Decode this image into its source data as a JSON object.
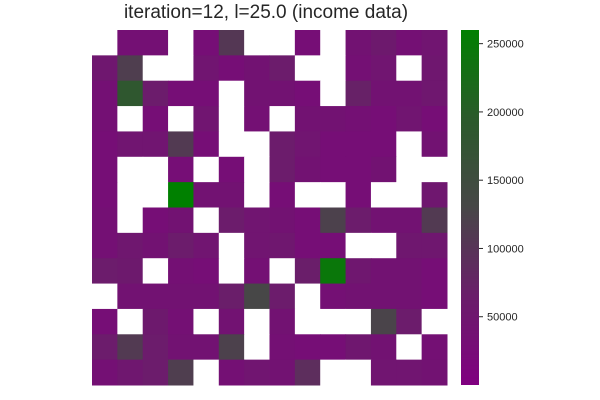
{
  "chart_data": {
    "type": "heatmap",
    "title": "iteration=12, l=25.0 (income data)",
    "xlabel": "",
    "ylabel": "",
    "grid": false,
    "colorbar": {
      "position": "right",
      "min": 0,
      "max": 260000,
      "ticks": [
        50000,
        100000,
        150000,
        200000,
        250000
      ],
      "tick_labels": [
        "50000",
        "100000",
        "150000",
        "200000",
        "250000"
      ],
      "colors": [
        "#800080",
        "#6a1e6a",
        "#474747",
        "#2b5a2b",
        "#008000"
      ]
    },
    "missing_color": "#ffffff",
    "values": [
      [
        null,
        35000,
        35000,
        null,
        30000,
        105000,
        null,
        null,
        30000,
        null,
        40000,
        55000,
        35000,
        45000
      ],
      [
        50000,
        115000,
        null,
        null,
        45000,
        30000,
        40000,
        60000,
        null,
        null,
        35000,
        45000,
        null,
        50000
      ],
      [
        35000,
        185000,
        60000,
        30000,
        30000,
        null,
        40000,
        40000,
        30000,
        null,
        70000,
        40000,
        40000,
        50000
      ],
      [
        35000,
        null,
        30000,
        null,
        45000,
        null,
        35000,
        null,
        40000,
        40000,
        35000,
        30000,
        45000,
        30000
      ],
      [
        30000,
        45000,
        45000,
        110000,
        30000,
        null,
        null,
        60000,
        45000,
        30000,
        30000,
        30000,
        null,
        40000
      ],
      [
        30000,
        null,
        null,
        30000,
        null,
        30000,
        null,
        60000,
        40000,
        30000,
        30000,
        40000,
        null,
        null
      ],
      [
        30000,
        null,
        null,
        260000,
        40000,
        40000,
        null,
        30000,
        null,
        null,
        30000,
        null,
        null,
        50000
      ],
      [
        35000,
        null,
        30000,
        40000,
        null,
        60000,
        45000,
        40000,
        30000,
        120000,
        60000,
        40000,
        40000,
        110000
      ],
      [
        35000,
        50000,
        40000,
        60000,
        45000,
        null,
        45000,
        50000,
        30000,
        30000,
        null,
        null,
        50000,
        50000
      ],
      [
        60000,
        55000,
        null,
        35000,
        30000,
        null,
        35000,
        null,
        65000,
        245000,
        50000,
        40000,
        40000,
        30000
      ],
      [
        null,
        40000,
        40000,
        40000,
        40000,
        65000,
        130000,
        60000,
        null,
        35000,
        40000,
        40000,
        40000,
        30000
      ],
      [
        30000,
        null,
        55000,
        35000,
        null,
        40000,
        null,
        40000,
        null,
        null,
        null,
        125000,
        60000,
        null
      ],
      [
        60000,
        110000,
        60000,
        40000,
        40000,
        120000,
        null,
        35000,
        30000,
        30000,
        50000,
        40000,
        null,
        35000
      ],
      [
        35000,
        50000,
        60000,
        115000,
        null,
        35000,
        45000,
        40000,
        90000,
        null,
        null,
        45000,
        45000,
        40000
      ]
    ]
  }
}
